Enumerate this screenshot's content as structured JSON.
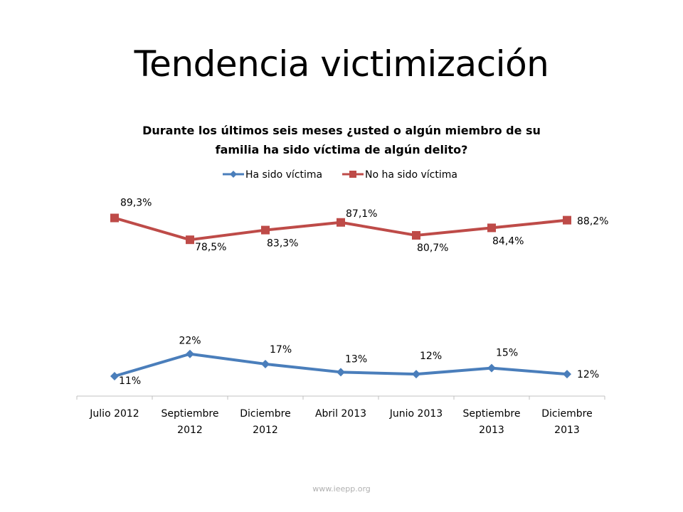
{
  "slide_title": "Tendencia victimización",
  "footer": "www.ieepp.org",
  "chart_data": {
    "type": "line",
    "title": "Durante los últimos seis meses ¿usted o algún miembro de su familia ha sido víctima de algún delito?",
    "title_lines": [
      "Durante los últimos seis meses ¿usted o algún miembro de su",
      "familia ha sido víctima de algún delito?"
    ],
    "categories": [
      "Julio 2012",
      "Septiembre 2012",
      "Diciembre 2012",
      "Abril 2013",
      "Junio 2013",
      "Septiembre 2013",
      "Diciembre 2013"
    ],
    "category_lines": [
      [
        "Julio 2012"
      ],
      [
        "Septiembre",
        "2012"
      ],
      [
        "Diciembre",
        "2012"
      ],
      [
        "Abril 2013"
      ],
      [
        "Junio 2013"
      ],
      [
        "Septiembre",
        "2013"
      ],
      [
        "Diciembre",
        "2013"
      ]
    ],
    "series": [
      {
        "name": "Ha sido víctima",
        "color": "#4a7ebb",
        "marker": "diamond",
        "values": [
          11,
          22,
          17,
          13,
          12,
          15,
          12
        ],
        "labels": [
          "11%",
          "22%",
          "17%",
          "13%",
          "12%",
          "15%",
          "12%"
        ]
      },
      {
        "name": "No ha sido víctima",
        "color": "#be4b48",
        "marker": "square",
        "values": [
          89.3,
          78.5,
          83.3,
          87.1,
          80.7,
          84.4,
          88.2
        ],
        "labels": [
          "89,3%",
          "78,5%",
          "83,3%",
          "87,1%",
          "80,7%",
          "84,4%",
          "88,2%"
        ]
      }
    ],
    "legend_position": "top",
    "grid": false,
    "y_axis_visible": false
  }
}
